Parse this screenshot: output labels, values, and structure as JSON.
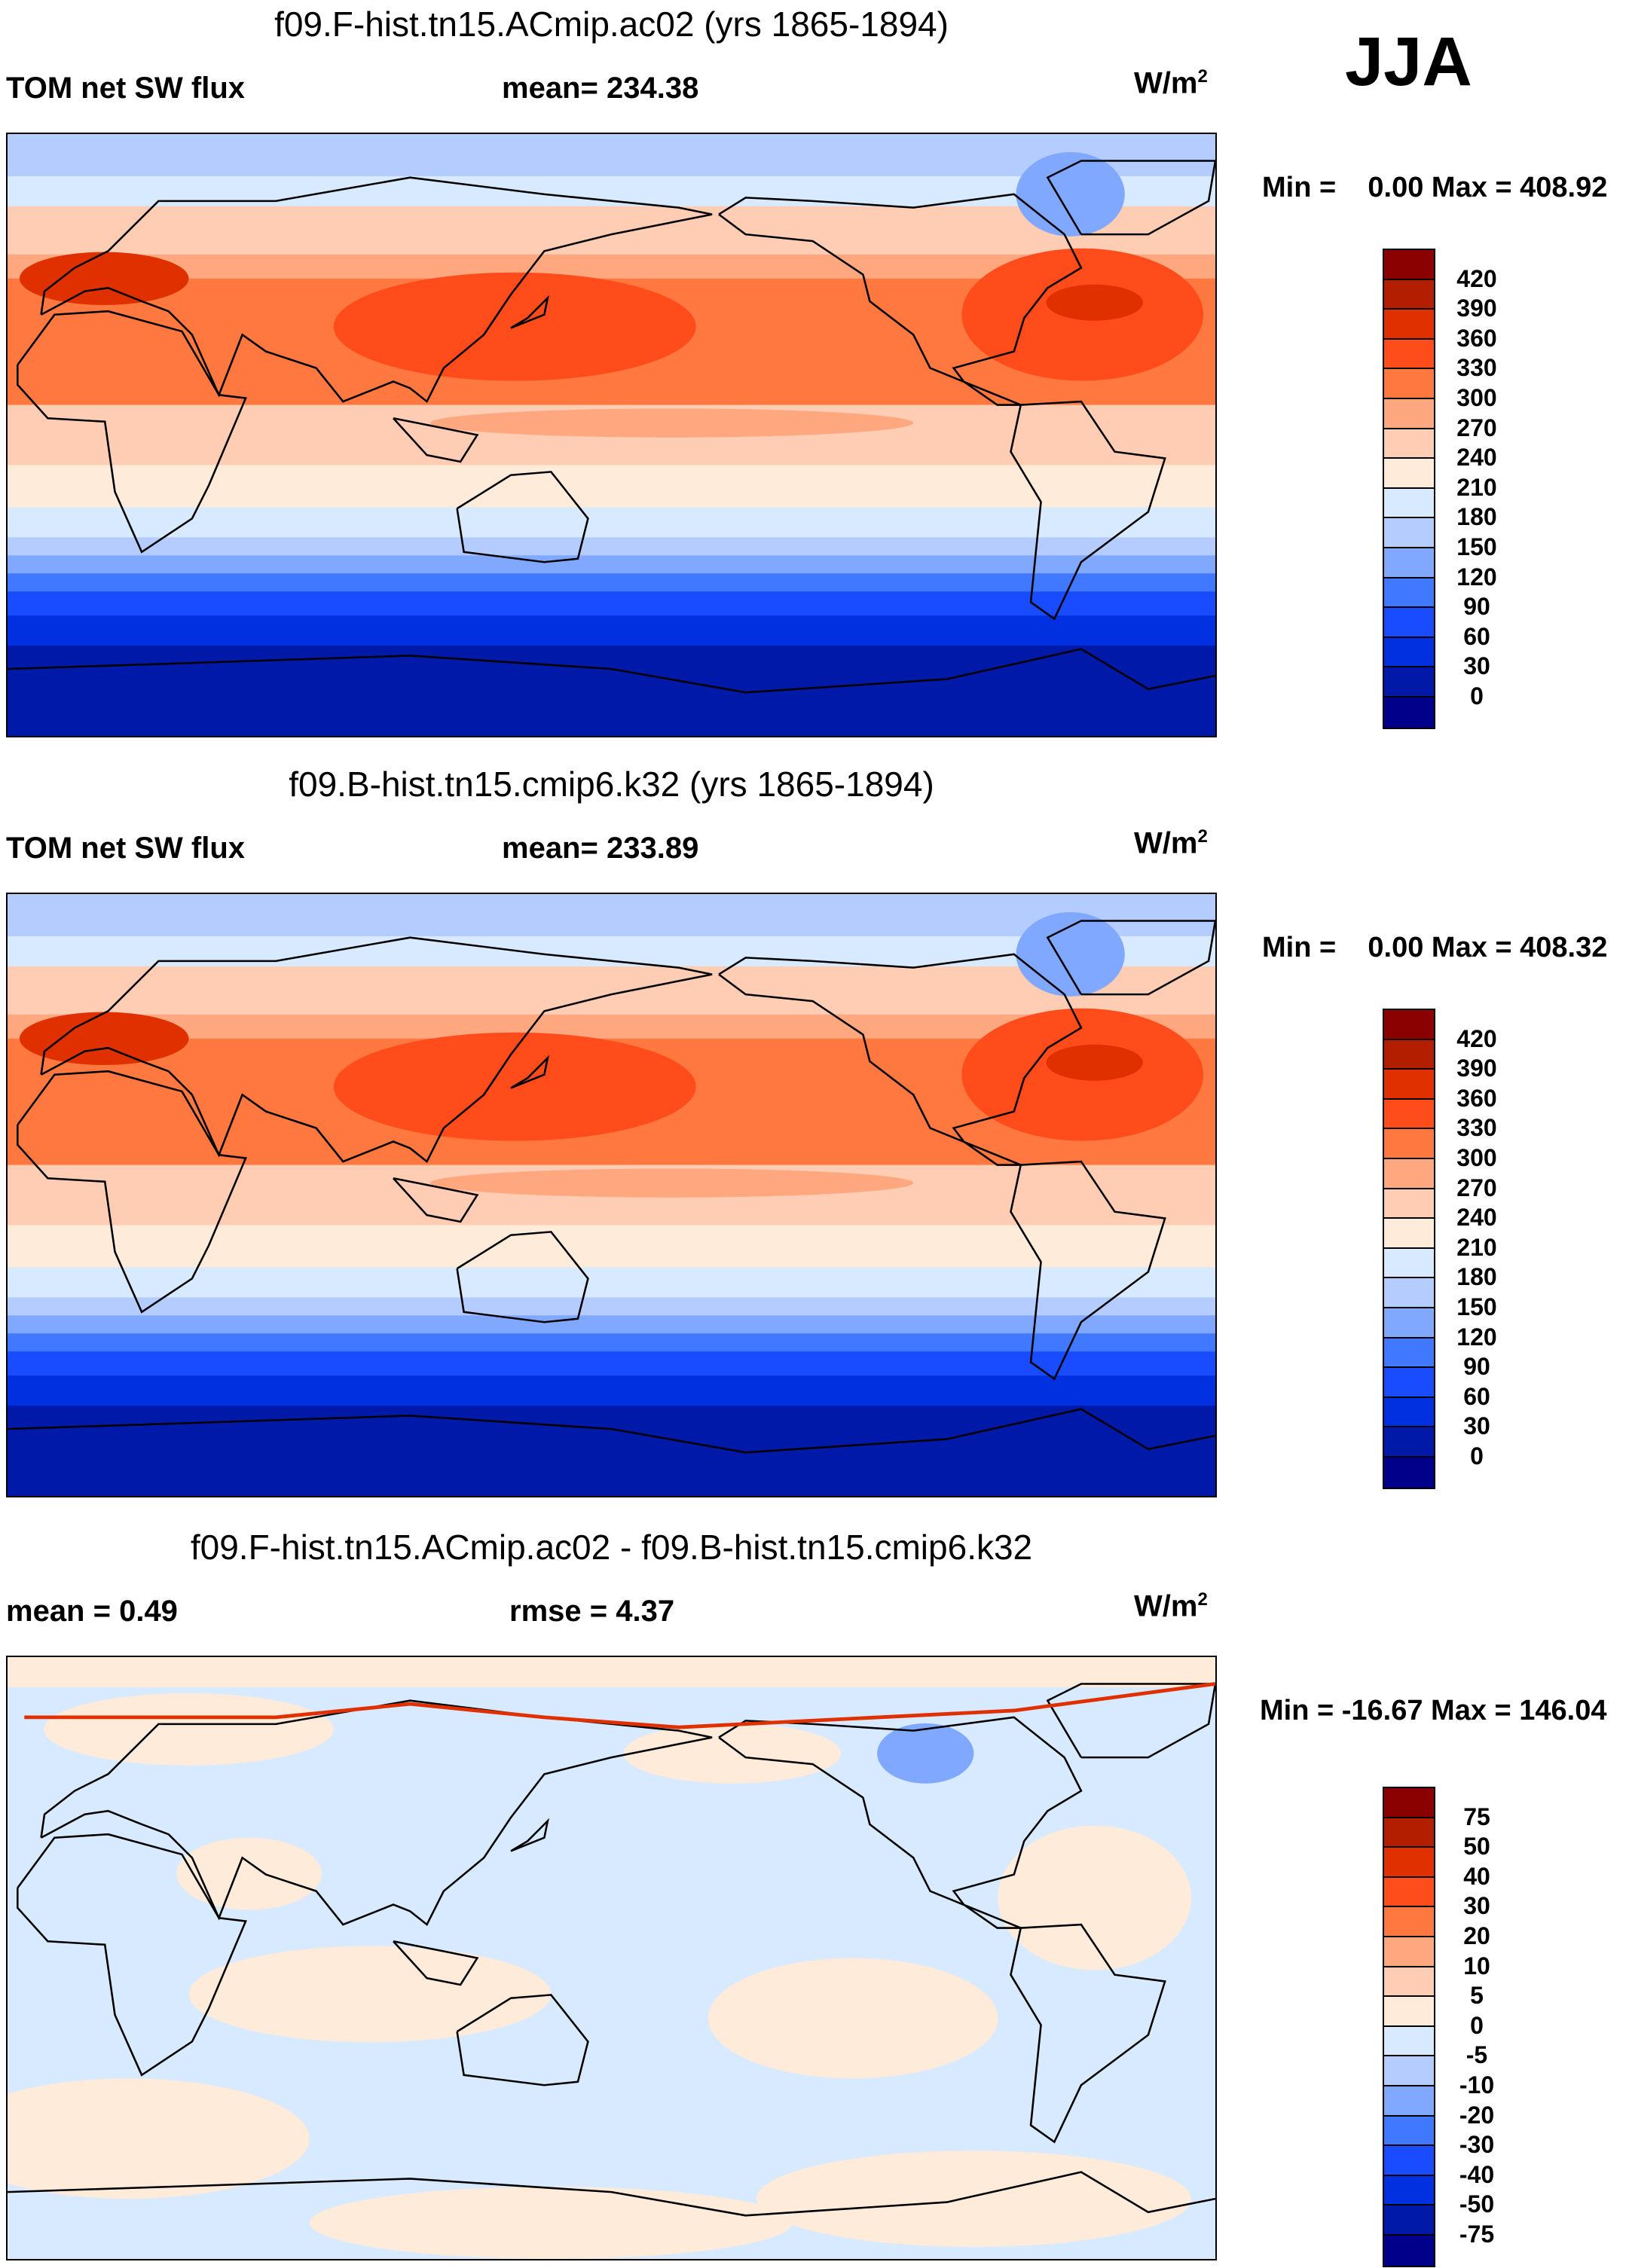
{
  "season": "JJA",
  "colors": [
    "#00008B",
    "#0019A8",
    "#0030E0",
    "#1A4CFF",
    "#4078FF",
    "#80A8FF",
    "#B4CCFF",
    "#D8EAFF",
    "#FFEBDA",
    "#FFCCB4",
    "#FFA880",
    "#FF7840",
    "#FF4C1A",
    "#E03000",
    "#B41E00",
    "#8B0000"
  ],
  "chart_data": [
    {
      "type": "heatmap",
      "title": "f09.F-hist.tn15.ACmip.ac02 (yrs 1865-1894)",
      "left_label": "TOM net SW flux",
      "center_label": "mean= 234.38",
      "units": "W/m",
      "units_sup": "2",
      "minmax": "Min =    0.00 Max = 408.92",
      "levels": [
        "420",
        "390",
        "360",
        "330",
        "300",
        "270",
        "240",
        "210",
        "180",
        "150",
        "120",
        "90",
        "60",
        "30",
        "0"
      ]
    },
    {
      "type": "heatmap",
      "title": "f09.B-hist.tn15.cmip6.k32 (yrs 1865-1894)",
      "left_label": "TOM net SW flux",
      "center_label": "mean= 233.89",
      "units": "W/m",
      "units_sup": "2",
      "minmax": "Min =    0.00 Max = 408.32",
      "levels": [
        "420",
        "390",
        "360",
        "330",
        "300",
        "270",
        "240",
        "210",
        "180",
        "150",
        "120",
        "90",
        "60",
        "30",
        "0"
      ]
    },
    {
      "type": "heatmap",
      "title": "f09.F-hist.tn15.ACmip.ac02 - f09.B-hist.tn15.cmip6.k32",
      "left_label": "mean =   0.49",
      "center_label": "rmse =   4.37",
      "units": "W/m",
      "units_sup": "2",
      "minmax": "Min = -16.67 Max = 146.04",
      "levels": [
        "75",
        "50",
        "40",
        "30",
        "20",
        "10",
        "5",
        "0",
        "-5",
        "-10",
        "-20",
        "-30",
        "-40",
        "-50",
        "-75"
      ]
    }
  ]
}
